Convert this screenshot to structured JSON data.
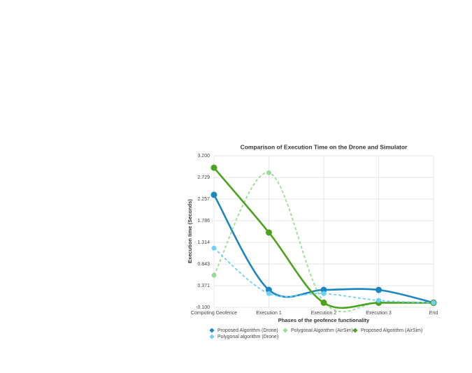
{
  "chart_data": {
    "type": "line",
    "title": "Comparison of Execution Time on the Drone and Simulator",
    "x_label": "Phases of the geofence functionality",
    "y_label": "Execution time (Seconds)",
    "categories": [
      "Computing Geofence",
      "Execution 1",
      "Execution 2",
      "Execution 3",
      "End"
    ],
    "ylim": [
      -0.1,
      3.2
    ],
    "yticks": [
      {
        "value": -0.1,
        "label": "-0.100"
      },
      {
        "value": 0.371,
        "label": "0.371"
      },
      {
        "value": 0.843,
        "label": "0.843"
      },
      {
        "value": 1.314,
        "label": "1.314"
      },
      {
        "value": 1.786,
        "label": "1.786"
      },
      {
        "value": 2.257,
        "label": "2.257"
      },
      {
        "value": 2.729,
        "label": "2.729"
      },
      {
        "value": 3.2,
        "label": "3.200"
      }
    ],
    "grid": true,
    "legend": "bottom",
    "series": [
      {
        "name": "Proposed Algorithm (Drone)",
        "color": "#1a87c0",
        "dashed": false,
        "values": [
          2.35,
          0.28,
          0.28,
          0.28,
          0.0
        ]
      },
      {
        "name": "Polygonal Algorithm (AirSim)",
        "color": "#9adb9a",
        "dashed": true,
        "values": [
          0.6,
          2.83,
          0.02,
          0.0,
          0.0
        ]
      },
      {
        "name": "Proposed Algorithm (AirSim)",
        "color": "#4aa31c",
        "dashed": false,
        "values": [
          2.94,
          1.53,
          0.0,
          0.0,
          0.0
        ]
      },
      {
        "name": "Polygonal algorithm (Drone)",
        "color": "#6fd0f5",
        "dashed": true,
        "values": [
          1.19,
          0.2,
          0.2,
          0.05,
          0.0
        ]
      }
    ]
  }
}
